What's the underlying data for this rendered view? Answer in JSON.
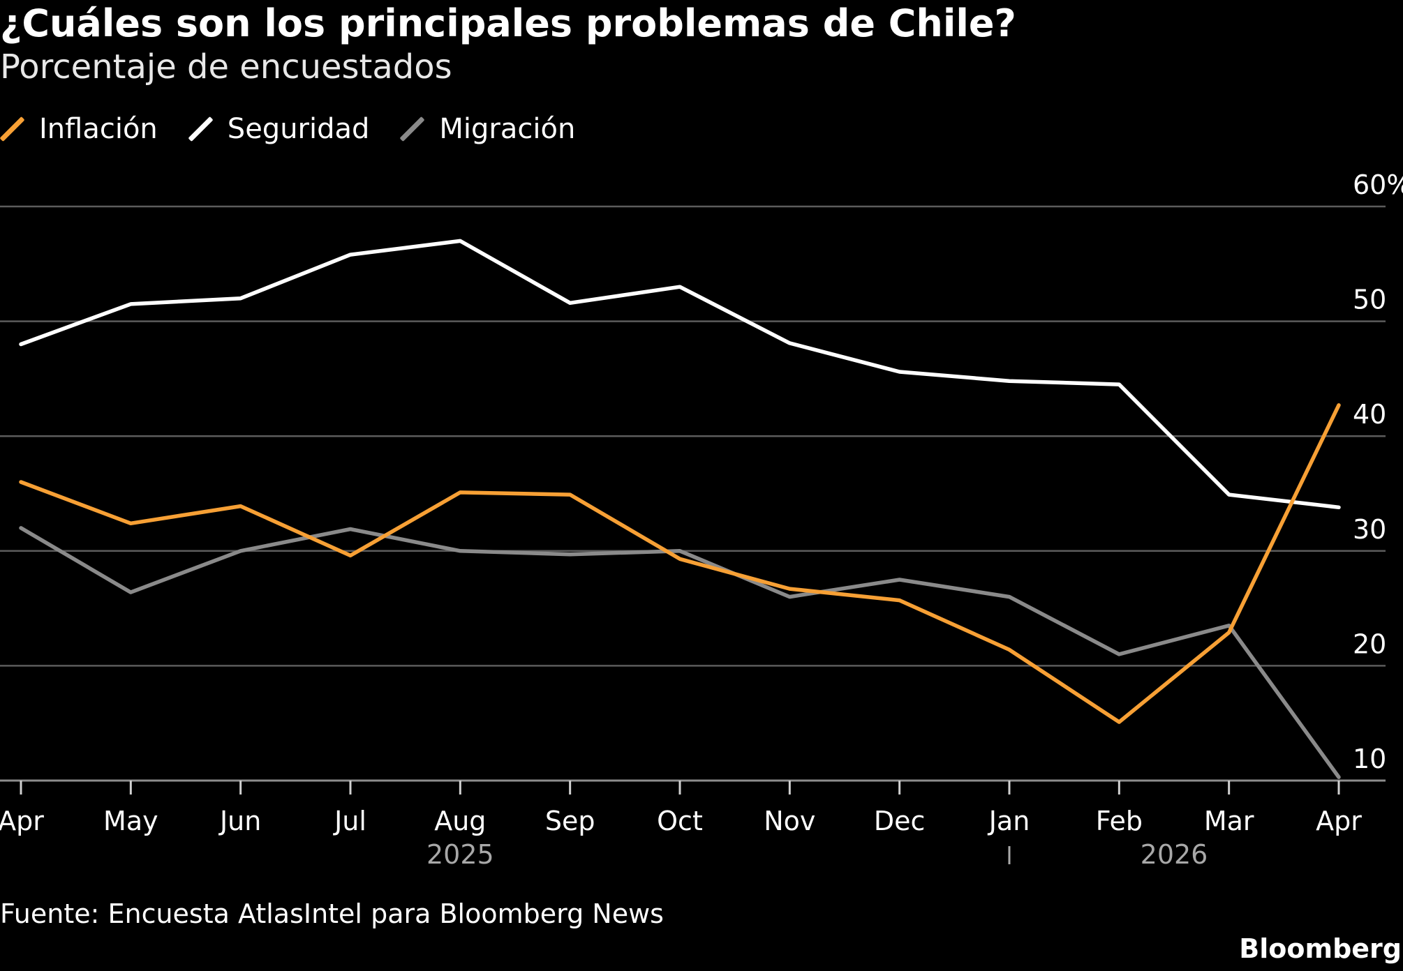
{
  "chart_data": {
    "type": "line",
    "title": "¿Cuáles son los principales problemas de Chile?",
    "subtitle": "Porcentaje de encuestados",
    "x": [
      "Apr",
      "May",
      "Jun",
      "Jul",
      "Aug",
      "Sep",
      "Oct",
      "Nov",
      "Dec",
      "Jan",
      "Feb",
      "Mar",
      "Apr"
    ],
    "year_labels": [
      {
        "label": "2025",
        "start": 0,
        "end": 8
      },
      {
        "label": "2026",
        "start": 9,
        "end": 12
      }
    ],
    "year_divider_after": "Dec",
    "ylim": [
      10,
      60
    ],
    "yticks": [
      10,
      20,
      30,
      40,
      50,
      60
    ],
    "ytick_labels": [
      "10",
      "20",
      "30",
      "40",
      "50",
      "60%"
    ],
    "yaxis_side": "right",
    "grid": true,
    "legend_position": "top-left",
    "series": [
      {
        "name": "Inflación",
        "color": "#f7a035",
        "values": [
          36.0,
          32.4,
          33.9,
          29.6,
          35.1,
          34.9,
          29.3,
          26.7,
          25.7,
          21.4,
          15.1,
          22.9,
          42.7
        ]
      },
      {
        "name": "Seguridad",
        "color": "#ffffff",
        "values": [
          48.0,
          51.5,
          52.0,
          55.8,
          57.0,
          51.6,
          53.0,
          48.1,
          45.6,
          44.8,
          44.5,
          34.9,
          33.8
        ]
      },
      {
        "name": "Migración",
        "color": "#8a8a8a",
        "values": [
          32.0,
          26.4,
          30.0,
          31.9,
          30.0,
          29.7,
          30.0,
          26.0,
          27.5,
          26.0,
          21.0,
          23.5,
          10.3
        ]
      }
    ],
    "source": "Fuente: Encuesta AtlasIntel para Bloomberg News",
    "brand": "Bloomberg"
  }
}
